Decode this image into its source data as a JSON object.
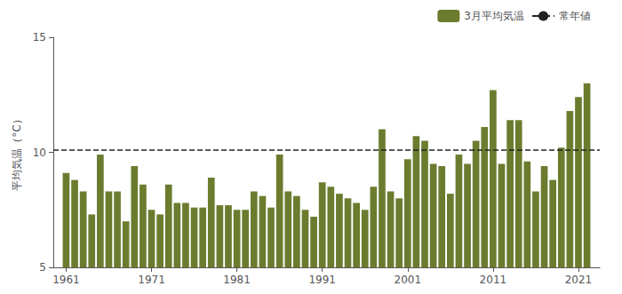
{
  "chart_data": {
    "type": "bar",
    "ylabel": "平均気温（°C）",
    "x": [
      1961,
      1962,
      1963,
      1964,
      1965,
      1966,
      1967,
      1968,
      1969,
      1970,
      1971,
      1972,
      1973,
      1974,
      1975,
      1976,
      1977,
      1978,
      1979,
      1980,
      1981,
      1982,
      1983,
      1984,
      1985,
      1986,
      1987,
      1988,
      1989,
      1990,
      1991,
      1992,
      1993,
      1994,
      1995,
      1996,
      1997,
      1998,
      1999,
      2000,
      2001,
      2002,
      2003,
      2004,
      2005,
      2006,
      2007,
      2008,
      2009,
      2010,
      2011,
      2012,
      2013,
      2014,
      2015,
      2016,
      2017,
      2018,
      2019,
      2020,
      2021,
      2022
    ],
    "series": [
      {
        "name": "3月平均気温",
        "type": "bar",
        "color": "#6b7c2e",
        "values": [
          9.1,
          8.8,
          8.3,
          7.3,
          9.9,
          8.3,
          8.3,
          7.0,
          9.4,
          8.6,
          7.5,
          7.3,
          8.6,
          7.8,
          7.8,
          7.6,
          7.6,
          8.9,
          7.7,
          7.7,
          7.5,
          7.5,
          8.3,
          8.1,
          7.6,
          9.9,
          8.3,
          8.1,
          7.5,
          7.2,
          8.7,
          8.5,
          8.2,
          8.0,
          7.8,
          7.5,
          8.5,
          11.0,
          8.3,
          8.0,
          9.7,
          10.7,
          10.5,
          9.5,
          9.4,
          8.2,
          9.9,
          9.5,
          10.5,
          11.1,
          12.7,
          9.5,
          11.4,
          11.4,
          9.6,
          8.3,
          9.4,
          8.8,
          10.2,
          11.8,
          12.4,
          13.0
        ]
      },
      {
        "name": "常年値",
        "type": "hline",
        "color": "#222222",
        "line_style": "dashed",
        "y": 10.1
      }
    ],
    "xlim": [
      1959.5,
      2023.5
    ],
    "xticks": [
      1961,
      1971,
      1981,
      1991,
      2001,
      2011,
      2021
    ],
    "ylim": [
      5,
      15
    ],
    "yticks": [
      5,
      10,
      15
    ],
    "grid": false,
    "legend": "upper right"
  }
}
